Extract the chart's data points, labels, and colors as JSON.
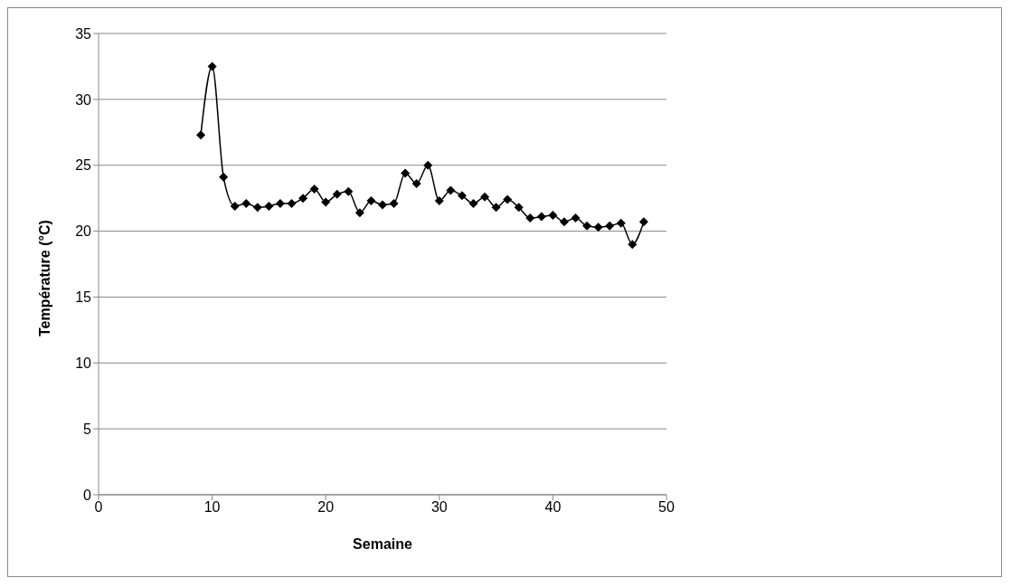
{
  "chart_data": {
    "type": "line",
    "xlabel": "Semaine",
    "ylabel": "Température (°C)",
    "x": [
      9,
      10,
      11,
      12,
      13,
      14,
      15,
      16,
      17,
      18,
      19,
      20,
      21,
      22,
      23,
      24,
      25,
      26,
      27,
      28,
      29,
      30,
      31,
      32,
      33,
      34,
      35,
      36,
      37,
      38,
      39,
      40,
      41,
      42,
      43,
      44,
      45,
      46,
      47,
      48
    ],
    "series": [
      {
        "color": "#000000",
        "values": [
          27.3,
          32.5,
          24.1,
          21.9,
          22.1,
          21.8,
          21.9,
          22.1,
          22.1,
          22.5,
          23.2,
          22.2,
          22.8,
          23.0,
          21.4,
          22.3,
          22.0,
          22.1,
          24.4,
          23.6,
          25.0,
          22.3,
          23.1,
          22.7,
          22.1,
          22.6,
          21.8,
          22.4,
          21.8,
          21.0,
          21.1,
          21.2,
          20.7,
          21.0,
          20.4,
          20.3,
          20.4,
          20.6,
          19.0,
          20.7
        ]
      }
    ],
    "xlim": [
      0,
      50
    ],
    "xticks": [
      0,
      10,
      20,
      30,
      40,
      50
    ],
    "ylim": [
      0,
      35
    ],
    "yticks": [
      0,
      5,
      10,
      15,
      20,
      25,
      30,
      35
    ],
    "grid": "y",
    "marker": "diamond",
    "line_style": "solid",
    "legend": false
  }
}
